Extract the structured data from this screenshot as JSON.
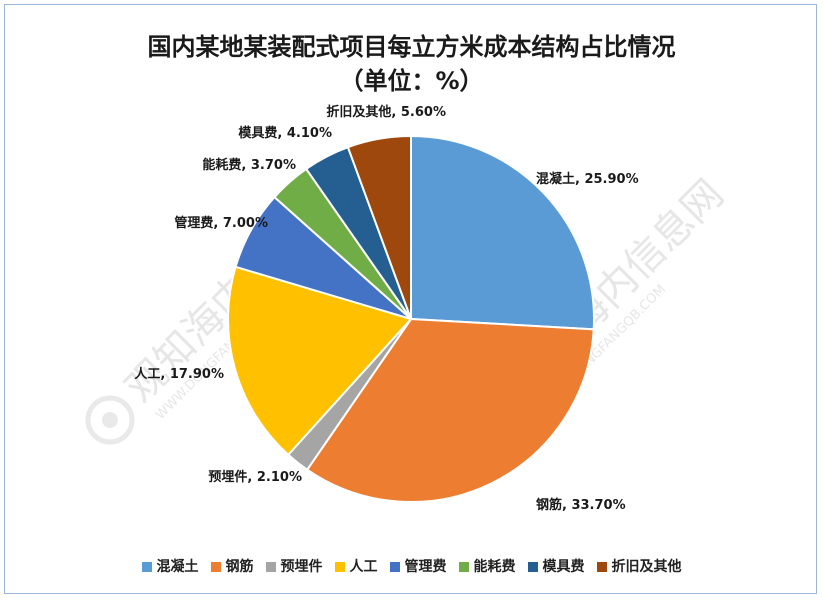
{
  "title_line1": "国内某地某装配式项目每立方米成本结构占比情况",
  "title_line2": "（单位：%）",
  "watermark": {
    "text": "观知海内信息网",
    "subtext": "WWW.DONGFANGQB.COM"
  },
  "chart_data": {
    "type": "pie",
    "unit": "%",
    "slices": [
      {
        "name": "混凝土",
        "value": 25.9,
        "label": "混凝土, 25.90%",
        "color": "#5b9bd5"
      },
      {
        "name": "钢筋",
        "value": 33.7,
        "label": "钢筋, 33.70%",
        "color": "#ed7d31"
      },
      {
        "name": "预埋件",
        "value": 2.1,
        "label": "预埋件, 2.10%",
        "color": "#a5a5a5"
      },
      {
        "name": "人工",
        "value": 17.9,
        "label": "人工, 17.90%",
        "color": "#ffc000"
      },
      {
        "name": "管理费",
        "value": 7.0,
        "label": "管理费, 7.00%",
        "color": "#4472c4"
      },
      {
        "name": "能耗费",
        "value": 3.7,
        "label": "能耗费, 3.70%",
        "color": "#70ad47"
      },
      {
        "name": "模具费",
        "value": 4.1,
        "label": "模具费, 4.10%",
        "color": "#255e91"
      },
      {
        "name": "折旧及其他",
        "value": 5.6,
        "label": "折旧及其他, 5.60%",
        "color": "#9e480e"
      }
    ],
    "legend_position": "bottom"
  }
}
